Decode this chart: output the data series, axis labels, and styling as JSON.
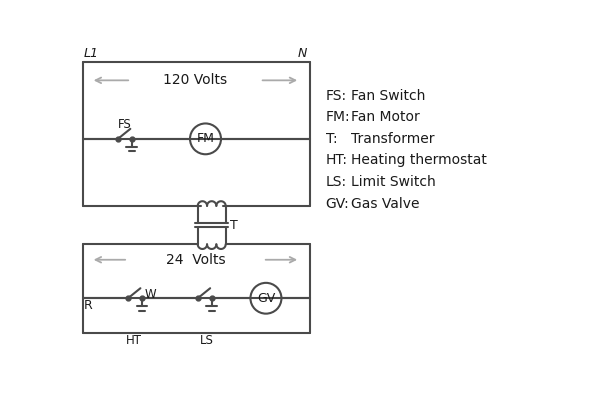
{
  "bg_color": "#ffffff",
  "line_color": "#4a4a4a",
  "text_color": "#1a1a1a",
  "line_width": 1.5,
  "legend_items": [
    [
      "FS:",
      "Fan Switch"
    ],
    [
      "FM:",
      "Fan Motor"
    ],
    [
      "T:",
      "Transformer"
    ],
    [
      "HT:",
      "Heating thermostat"
    ],
    [
      "LS:",
      "Limit Switch"
    ],
    [
      "GV:",
      "Gas Valve"
    ]
  ],
  "label_L1": "L1",
  "label_N": "N",
  "label_120V": "120 Volts",
  "label_24V": "24  Volts",
  "label_T": "T",
  "label_R": "R",
  "label_W": "W",
  "label_FS": "FS",
  "label_FM": "FM",
  "label_HT": "HT",
  "label_LS": "LS",
  "label_GV": "GV"
}
